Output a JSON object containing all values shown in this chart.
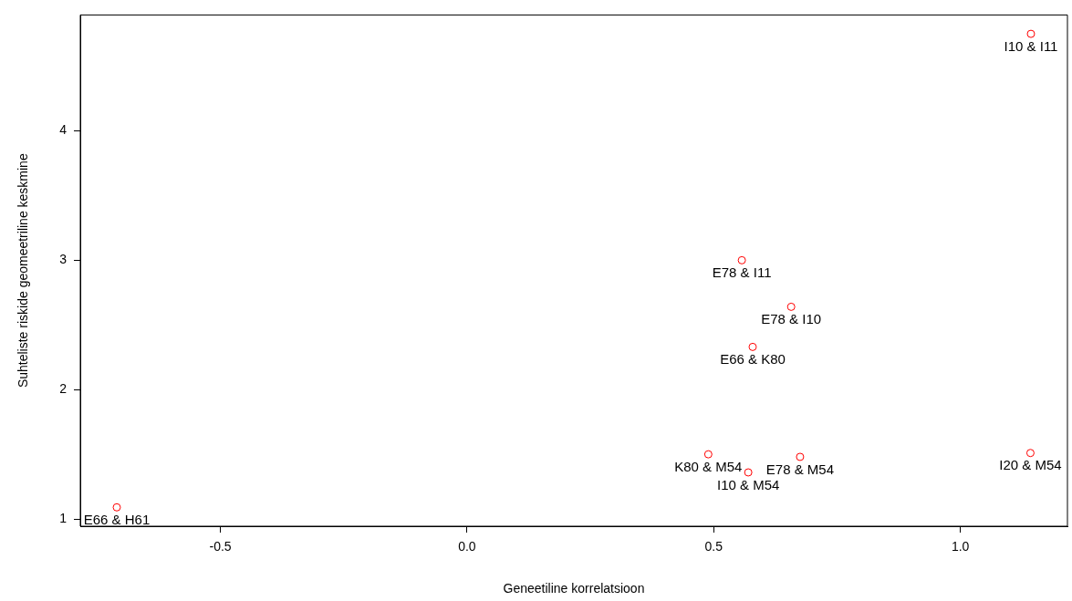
{
  "chart_data": {
    "type": "scatter",
    "xlabel": "Geneetiline korrelatsioon",
    "ylabel": "Suhteliste riskide geomeetriline keskmine",
    "x": [
      -0.71,
      0.489,
      0.57,
      0.675,
      0.579,
      0.657,
      0.557,
      1.143,
      1.142
    ],
    "values": [
      1.09,
      1.5,
      1.36,
      1.48,
      2.33,
      2.64,
      3.0,
      4.75,
      1.51
    ],
    "color": "#ff0000",
    "marker": "circle",
    "grid": false,
    "legend": false,
    "xlim": [
      -0.784,
      1.217
    ],
    "xticks": [
      -0.5,
      {
        "value": 0,
        "label": "0.0"
      },
      0.5,
      {
        "value": 1,
        "label": "1.0"
      }
    ],
    "ylim": [
      0.944,
      4.896
    ],
    "yticks": [
      1,
      2,
      3,
      4
    ],
    "annotations": [
      {
        "text": "E66 & H61",
        "x": -0.71,
        "y": 1.09
      },
      {
        "text": "K80 & M54",
        "x": 0.489,
        "y": 1.5
      },
      {
        "text": "I10 & M54",
        "x": 0.57,
        "y": 1.36
      },
      {
        "text": "E78 & M54",
        "x": 0.675,
        "y": 1.48
      },
      {
        "text": "E66 & K80",
        "x": 0.579,
        "y": 2.33
      },
      {
        "text": "E78 & I10",
        "x": 0.657,
        "y": 2.64
      },
      {
        "text": "E78 & I11",
        "x": 0.557,
        "y": 3.0
      },
      {
        "text": "I10 & I11",
        "x": 1.143,
        "y": 4.75
      },
      {
        "text": "I20 & M54",
        "x": 1.142,
        "y": 1.51
      }
    ]
  }
}
